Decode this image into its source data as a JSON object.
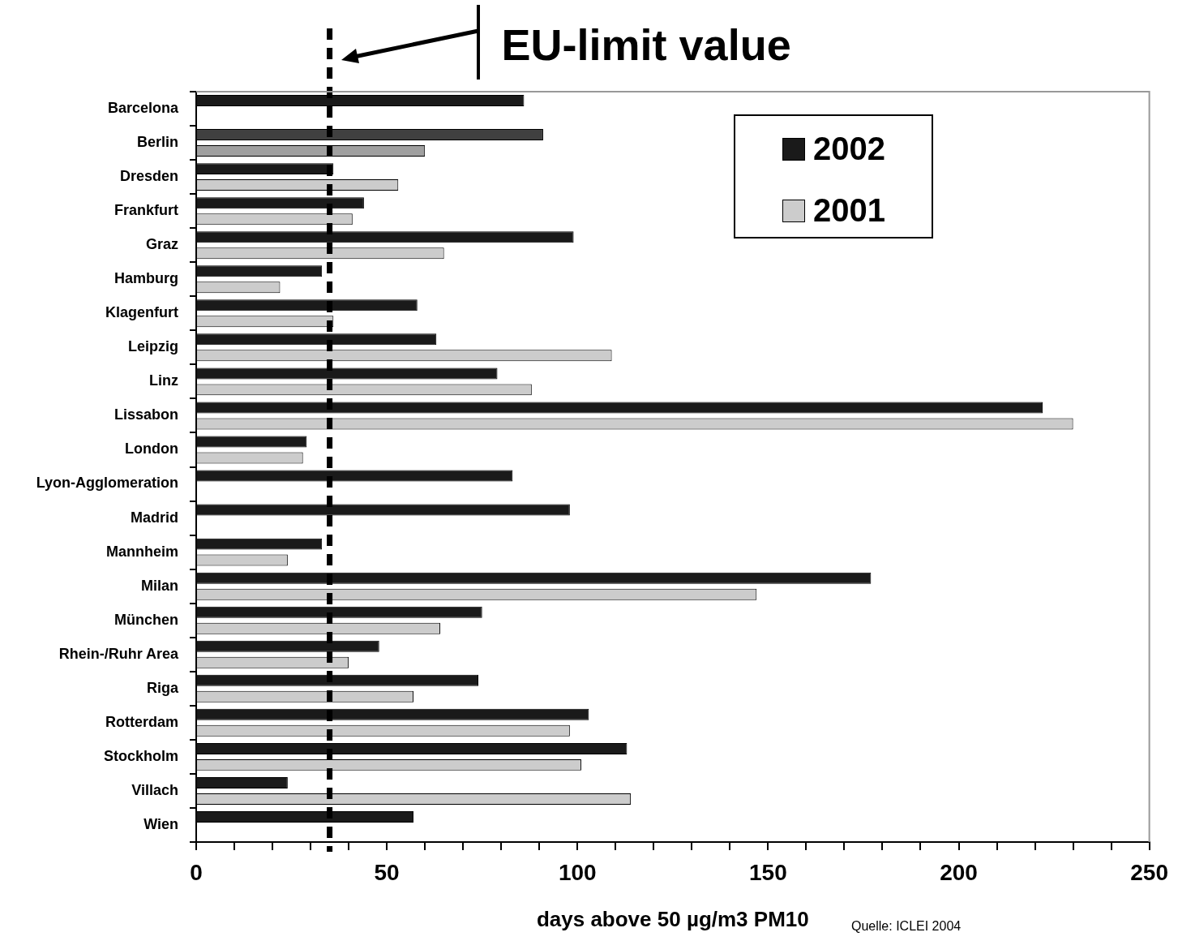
{
  "chart_data": {
    "type": "bar",
    "orientation": "horizontal",
    "xlabel": "days above 50 µg/m3 PM10",
    "categories": [
      "Barcelona",
      "Berlin",
      "Dresden",
      "Frankfurt",
      "Graz",
      "Hamburg",
      "Klagenfurt",
      "Leipzig",
      "Linz",
      "Lissabon",
      "London",
      "Lyon-Agglomeration",
      "Madrid",
      "Mannheim",
      "Milan",
      "München",
      "Rhein-/Ruhr Area",
      "Riga",
      "Rotterdam",
      "Stockholm",
      "Villach",
      "Wien"
    ],
    "series": [
      {
        "name": "2002",
        "color": "#1a1a1a",
        "colors": [
          "#1a1a1a",
          "#404040",
          "#1a1a1a",
          "#1a1a1a",
          "#1a1a1a",
          "#1a1a1a",
          "#1a1a1a",
          "#1a1a1a",
          "#1a1a1a",
          "#1a1a1a",
          "#1a1a1a",
          "#1a1a1a",
          "#1a1a1a",
          "#1a1a1a",
          "#1a1a1a",
          "#1a1a1a",
          "#1a1a1a",
          "#1a1a1a",
          "#1a1a1a",
          "#1a1a1a",
          "#1a1a1a",
          "#1a1a1a"
        ],
        "values": [
          86,
          91,
          36,
          44,
          99,
          33,
          58,
          63,
          79,
          222,
          29,
          83,
          98,
          33,
          177,
          75,
          48,
          74,
          103,
          113,
          24,
          57
        ]
      },
      {
        "name": "2001",
        "color": "#cccccc",
        "colors": [
          "#cccccc",
          "#a0a0a0",
          "#cccccc",
          "#cccccc",
          "#cccccc",
          "#cccccc",
          "#cccccc",
          "#cccccc",
          "#cccccc",
          "#cccccc",
          "#cccccc",
          "#cccccc",
          "#cccccc",
          "#cccccc",
          "#cccccc",
          "#cccccc",
          "#cccccc",
          "#cccccc",
          "#cccccc",
          "#cccccc",
          "#cccccc",
          "#cccccc"
        ],
        "values": [
          null,
          60,
          53,
          41,
          65,
          22,
          36,
          109,
          88,
          230,
          28,
          null,
          null,
          24,
          147,
          64,
          40,
          57,
          98,
          101,
          114,
          null
        ]
      }
    ],
    "xlim": [
      0,
      250
    ],
    "xticks": [
      0,
      {
        "value": 10,
        "label": null
      },
      {
        "value": 20,
        "label": null
      },
      {
        "value": 30,
        "label": null
      },
      {
        "value": 40,
        "label": null
      },
      50,
      {
        "value": 60,
        "label": null
      },
      {
        "value": 70,
        "label": null
      },
      {
        "value": 80,
        "label": null
      },
      {
        "value": 90,
        "label": null
      },
      100,
      {
        "value": 110,
        "label": null
      },
      {
        "value": 120,
        "label": null
      },
      {
        "value": 130,
        "label": null
      },
      {
        "value": 140,
        "label": null
      },
      150,
      {
        "value": 160,
        "label": null
      },
      {
        "value": 170,
        "label": null
      },
      {
        "value": 180,
        "label": null
      },
      {
        "value": 190,
        "label": null
      },
      200,
      {
        "value": 210,
        "label": null
      },
      {
        "value": 220,
        "label": null
      },
      {
        "value": 230,
        "label": null
      },
      {
        "value": 240,
        "label": null
      },
      250
    ],
    "ref_lines": [
      {
        "axis": "x",
        "value": 35,
        "color": "#000000",
        "line_style": "dashed"
      }
    ],
    "annotations": [
      "EU-limit value",
      "Quelle: ICLEI 2004"
    ],
    "legend": "top right",
    "grid": false
  }
}
